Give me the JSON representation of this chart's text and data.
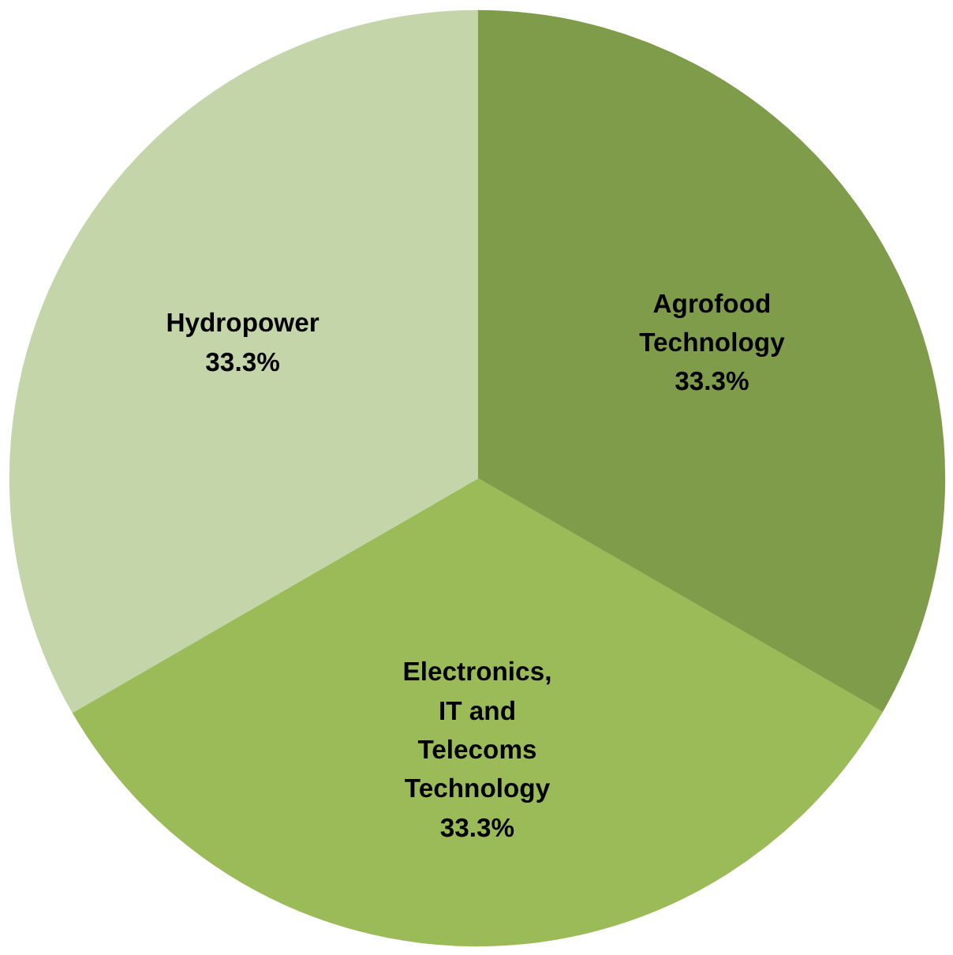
{
  "chart_data": {
    "type": "pie",
    "categories": [
      "Agrofood Technology",
      "Electronics, IT and Telecoms Technology",
      "Hydropower"
    ],
    "values": [
      33.3,
      33.3,
      33.3
    ],
    "value_labels": [
      "33.3%",
      "33.3%",
      "33.3%"
    ],
    "colors": [
      "#7f9c4a",
      "#9bbb59",
      "#c4d6a9"
    ]
  }
}
